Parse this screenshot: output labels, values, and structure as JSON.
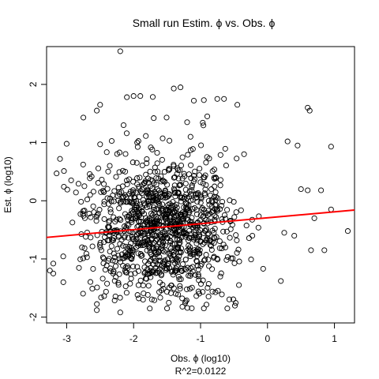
{
  "chart_data": {
    "type": "scatter",
    "title": "Small run Estim. ϕ vs. Obs. ϕ",
    "xlabel": "Obs. ϕ (log10)",
    "ylabel": "Est. ϕ (log10)",
    "sublabel": "R^2=0.0122",
    "xlim": [
      -3.3,
      1.3
    ],
    "ylim": [
      -2.1,
      2.65
    ],
    "xticks": [
      -3,
      -2,
      -1,
      0,
      1
    ],
    "yticks": [
      -2,
      -1,
      0,
      1,
      2
    ],
    "xtick_labels": [
      "-3",
      "-2",
      "-1",
      "0",
      "1"
    ],
    "ytick_labels": [
      "-2",
      "-1",
      "0",
      "1",
      "2"
    ],
    "point_style": "open-circle",
    "grid": false,
    "fit_line": {
      "color": "#ff0000",
      "x": [
        -3.3,
        1.3
      ],
      "y": [
        -0.63,
        -0.16
      ]
    },
    "point_cloud": {
      "n": 1150,
      "x_center": -1.6,
      "x_sd": 0.55,
      "y_center": -0.5,
      "y_sd": 0.6
    },
    "points": [
      {
        "x": -2.2,
        "y": 2.57
      },
      {
        "x": -1.4,
        "y": 1.93
      },
      {
        "x": -1.3,
        "y": 1.95
      },
      {
        "x": -2.5,
        "y": 1.65
      },
      {
        "x": -2.55,
        "y": 1.55
      },
      {
        "x": -2.0,
        "y": 1.8
      },
      {
        "x": -1.9,
        "y": 1.8
      },
      {
        "x": -2.1,
        "y": 1.78
      },
      {
        "x": -1.1,
        "y": 1.72
      },
      {
        "x": -0.95,
        "y": 1.73
      },
      {
        "x": -0.75,
        "y": 1.75
      },
      {
        "x": -0.65,
        "y": 1.75
      },
      {
        "x": -0.45,
        "y": 1.65
      },
      {
        "x": 0.6,
        "y": 1.6
      },
      {
        "x": 0.63,
        "y": 1.55
      },
      {
        "x": -2.75,
        "y": 1.43
      },
      {
        "x": -1.7,
        "y": 1.42
      },
      {
        "x": -0.9,
        "y": 1.45
      },
      {
        "x": -2.15,
        "y": 1.3
      },
      {
        "x": -1.2,
        "y": 1.35
      },
      {
        "x": -3.0,
        "y": 0.98
      },
      {
        "x": -2.5,
        "y": 0.97
      },
      {
        "x": -1.15,
        "y": 1.1
      },
      {
        "x": 0.3,
        "y": 1.02
      },
      {
        "x": 0.45,
        "y": 0.95
      },
      {
        "x": 0.95,
        "y": 0.93
      },
      {
        "x": -3.1,
        "y": 0.72
      },
      {
        "x": -3.15,
        "y": 0.47
      },
      {
        "x": -0.35,
        "y": 0.8
      },
      {
        "x": 0.5,
        "y": 0.2
      },
      {
        "x": 0.6,
        "y": 0.18
      },
      {
        "x": 0.8,
        "y": 0.18
      },
      {
        "x": 0.95,
        "y": -0.15
      },
      {
        "x": 0.7,
        "y": -0.3
      },
      {
        "x": 1.2,
        "y": -0.52
      },
      {
        "x": 0.65,
        "y": -0.85
      },
      {
        "x": 0.85,
        "y": -0.85
      },
      {
        "x": -3.25,
        "y": -1.2
      },
      {
        "x": -3.2,
        "y": -1.25
      },
      {
        "x": -3.2,
        "y": -1.08
      },
      {
        "x": -3.05,
        "y": -1.4
      },
      {
        "x": -2.55,
        "y": -1.88
      },
      {
        "x": -2.2,
        "y": -1.92
      },
      {
        "x": -1.5,
        "y": -1.85
      },
      {
        "x": -0.95,
        "y": -1.85
      },
      {
        "x": -0.6,
        "y": -1.85
      },
      {
        "x": 0.2,
        "y": -1.38
      },
      {
        "x": 0.4,
        "y": -0.6
      },
      {
        "x": 0.25,
        "y": -0.55
      }
    ]
  }
}
